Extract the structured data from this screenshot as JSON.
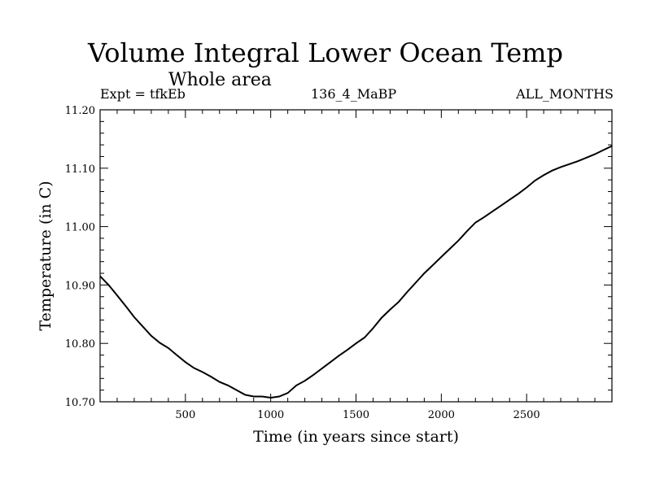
{
  "header": {
    "title": "Volume Integral Lower Ocean Temp",
    "subtitle": "Whole area",
    "expt": "Expt = tfkEb",
    "run": "136_4_MaBP",
    "months": "ALL_MONTHS"
  },
  "chart_data": {
    "type": "line",
    "title": "Volume Integral Lower Ocean Temp",
    "xlabel": "Time (in years since start)",
    "ylabel": "Temperature (in C)",
    "xlim": [
      0,
      3000
    ],
    "ylim": [
      10.7,
      11.2
    ],
    "xticks": [
      500,
      1000,
      1500,
      2000,
      2500
    ],
    "xtick_labels": [
      "500",
      "1000",
      "1500",
      "2000",
      "2500"
    ],
    "yticks": [
      10.7,
      10.8,
      10.9,
      11.0,
      11.1,
      11.2
    ],
    "ytick_labels": [
      "10.70",
      "10.80",
      "10.90",
      "11.00",
      "11.10",
      "11.20"
    ],
    "grid": false,
    "series": [
      {
        "x": [
          0,
          50,
          100,
          150,
          200,
          250,
          300,
          350,
          400,
          450,
          500,
          550,
          600,
          650,
          700,
          750,
          800,
          850,
          900,
          950,
          1000,
          1050,
          1100,
          1150,
          1200,
          1250,
          1300,
          1350,
          1400,
          1450,
          1500,
          1550,
          1600,
          1650,
          1700,
          1750,
          1800,
          1850,
          1900,
          1950,
          2000,
          2050,
          2100,
          2150,
          2200,
          2250,
          2300,
          2350,
          2400,
          2450,
          2500,
          2550,
          2600,
          2650,
          2700,
          2750,
          2800,
          2850,
          2900,
          2950,
          3000
        ],
        "y": [
          10.915,
          10.9,
          10.882,
          10.864,
          10.845,
          10.829,
          10.813,
          10.801,
          10.792,
          10.78,
          10.768,
          10.758,
          10.751,
          10.743,
          10.734,
          10.728,
          10.72,
          10.712,
          10.709,
          10.709,
          10.707,
          10.709,
          10.715,
          10.728,
          10.736,
          10.746,
          10.757,
          10.768,
          10.779,
          10.789,
          10.8,
          10.81,
          10.826,
          10.844,
          10.858,
          10.871,
          10.888,
          10.904,
          10.92,
          10.934,
          10.948,
          10.962,
          10.976,
          10.992,
          11.007,
          11.016,
          11.026,
          11.036,
          11.046,
          11.056,
          11.067,
          11.079,
          11.088,
          11.096,
          11.102,
          11.107,
          11.112,
          11.118,
          11.124,
          11.131,
          11.138
        ]
      }
    ]
  }
}
